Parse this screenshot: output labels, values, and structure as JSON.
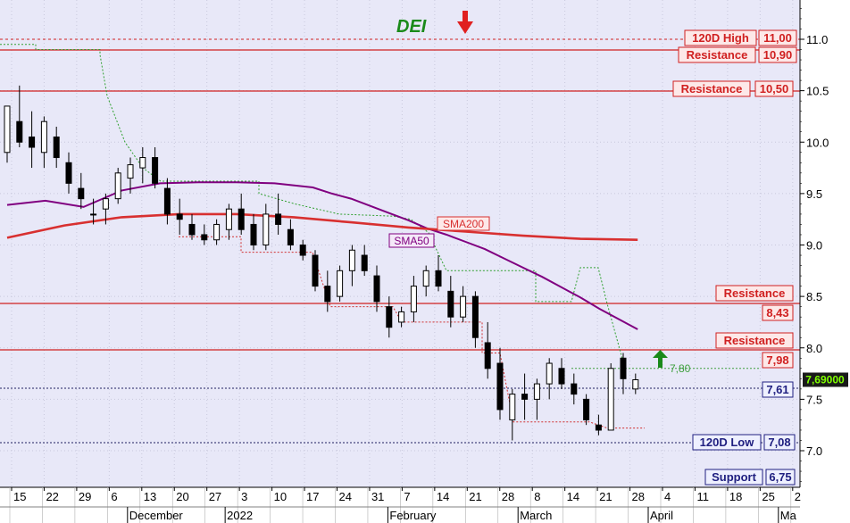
{
  "chart_data": {
    "type": "candlestick",
    "title": "DEI",
    "signal": "down",
    "ylim": [
      6.6,
      11.4
    ],
    "yticks": [
      "11.0",
      "10.5",
      "10.0",
      "9.5",
      "9.0",
      "8.5",
      "8.0",
      "7.5",
      "7.0"
    ],
    "ytick_values": [
      11.0,
      10.5,
      10.0,
      9.5,
      9.0,
      8.5,
      8.0,
      7.5,
      7.0
    ],
    "x_day_ticks": [
      "15",
      "22",
      "29",
      "6",
      "13",
      "20",
      "27",
      "3",
      "10",
      "17",
      "24",
      "31",
      "7",
      "14",
      "21",
      "28",
      "8",
      "14",
      "21",
      "28",
      "4",
      "11",
      "18",
      "25",
      "2"
    ],
    "x_month_labels": [
      {
        "label": "December",
        "at": 4
      },
      {
        "label": "2022",
        "at": 7
      },
      {
        "label": "February",
        "at": 12
      },
      {
        "label": "March",
        "at": 16
      },
      {
        "label": "April",
        "at": 20
      },
      {
        "label": "Ma",
        "at": 24
      }
    ],
    "levels": [
      {
        "label": "120D High",
        "value_text": "11,00",
        "value": 11.0,
        "style": "dashed"
      },
      {
        "label": "Resistance",
        "value_text": "10,90",
        "value": 10.9,
        "style": "solid"
      },
      {
        "label": "Resistance",
        "value_text": "10,50",
        "value": 10.5,
        "style": "solid"
      },
      {
        "label": "Resistance",
        "value_text": "8,43",
        "value": 8.43,
        "style": "solid"
      },
      {
        "label": "Resistance",
        "value_text": "7,98",
        "value": 7.98,
        "style": "solid"
      },
      {
        "label": "",
        "value_text": "7,61",
        "value": 7.61,
        "style": "dotted"
      },
      {
        "label": "120D Low",
        "value_text": "7,08",
        "value": 7.08,
        "style": "dotted"
      },
      {
        "label": "Support",
        "value_text": "6,75",
        "value": 6.75,
        "style": "none"
      }
    ],
    "last_price": "7,69000",
    "last_value": 7.69,
    "target_label": "7,80",
    "target_value": 7.8,
    "series": [
      {
        "name": "SMA50",
        "color": "#800080",
        "points": [
          [
            0,
            9.39
          ],
          [
            2,
            9.43
          ],
          [
            4,
            9.37
          ],
          [
            6,
            9.53
          ],
          [
            8,
            9.6
          ],
          [
            10,
            9.61
          ],
          [
            12,
            9.61
          ],
          [
            14,
            9.6
          ],
          [
            16,
            9.56
          ],
          [
            17,
            9.5
          ],
          [
            18,
            9.45
          ],
          [
            19,
            9.38
          ],
          [
            20,
            9.31
          ],
          [
            21,
            9.24
          ],
          [
            22,
            9.16
          ],
          [
            23,
            9.1
          ],
          [
            24,
            9.03
          ],
          [
            25,
            8.96
          ],
          [
            26,
            8.87
          ],
          [
            27,
            8.78
          ],
          [
            28,
            8.69
          ],
          [
            29,
            8.59
          ],
          [
            30,
            8.49
          ],
          [
            31,
            8.38
          ],
          [
            32,
            8.28
          ],
          [
            33,
            8.18
          ]
        ]
      },
      {
        "name": "SMA200",
        "color": "#d83030",
        "points": [
          [
            0,
            9.07
          ],
          [
            3,
            9.19
          ],
          [
            6,
            9.27
          ],
          [
            9,
            9.3
          ],
          [
            12,
            9.3
          ],
          [
            15,
            9.27
          ],
          [
            18,
            9.22
          ],
          [
            21,
            9.17
          ],
          [
            24,
            9.13
          ],
          [
            27,
            9.09
          ],
          [
            30,
            9.06
          ],
          [
            33,
            9.05
          ]
        ]
      }
    ],
    "candles": [
      [
        9.9,
        10.35,
        9.8,
        10.35
      ],
      [
        10.2,
        10.55,
        9.95,
        10.0
      ],
      [
        10.05,
        10.3,
        9.75,
        9.95
      ],
      [
        9.9,
        10.25,
        9.75,
        10.2
      ],
      [
        10.05,
        10.15,
        9.75,
        9.85
      ],
      [
        9.8,
        9.9,
        9.5,
        9.6
      ],
      [
        9.55,
        9.7,
        9.35,
        9.45
      ],
      [
        9.3,
        9.45,
        9.2,
        9.3
      ],
      [
        9.35,
        9.5,
        9.2,
        9.45
      ],
      [
        9.45,
        9.75,
        9.4,
        9.7
      ],
      [
        9.65,
        9.85,
        9.5,
        9.78
      ],
      [
        9.75,
        9.95,
        9.6,
        9.85
      ],
      [
        9.85,
        9.95,
        9.55,
        9.6
      ],
      [
        9.55,
        9.65,
        9.2,
        9.3
      ],
      [
        9.3,
        9.45,
        9.1,
        9.25
      ],
      [
        9.2,
        9.3,
        9.05,
        9.1
      ],
      [
        9.1,
        9.2,
        9.0,
        9.05
      ],
      [
        9.05,
        9.25,
        9.0,
        9.2
      ],
      [
        9.15,
        9.4,
        9.05,
        9.35
      ],
      [
        9.35,
        9.5,
        9.1,
        9.15
      ],
      [
        9.2,
        9.3,
        8.95,
        9.0
      ],
      [
        9.0,
        9.4,
        8.95,
        9.3
      ],
      [
        9.3,
        9.5,
        9.1,
        9.2
      ],
      [
        9.15,
        9.25,
        8.95,
        9.0
      ],
      [
        9.0,
        9.05,
        8.85,
        8.9
      ],
      [
        8.9,
        8.95,
        8.55,
        8.6
      ],
      [
        8.6,
        8.75,
        8.35,
        8.45
      ],
      [
        8.5,
        8.8,
        8.45,
        8.75
      ],
      [
        8.75,
        9.0,
        8.6,
        8.95
      ],
      [
        8.9,
        9.0,
        8.7,
        8.75
      ],
      [
        8.7,
        8.8,
        8.35,
        8.45
      ],
      [
        8.4,
        8.5,
        8.1,
        8.2
      ],
      [
        8.25,
        8.4,
        8.2,
        8.35
      ],
      [
        8.35,
        8.7,
        8.25,
        8.6
      ],
      [
        8.6,
        8.8,
        8.5,
        8.75
      ],
      [
        8.75,
        8.9,
        8.55,
        8.6
      ],
      [
        8.55,
        8.7,
        8.2,
        8.3
      ],
      [
        8.3,
        8.6,
        8.25,
        8.5
      ],
      [
        8.5,
        8.55,
        8.0,
        8.1
      ],
      [
        8.05,
        8.25,
        7.7,
        7.8
      ],
      [
        7.85,
        8.0,
        7.3,
        7.4
      ],
      [
        7.3,
        7.6,
        7.1,
        7.55
      ],
      [
        7.55,
        7.75,
        7.3,
        7.5
      ],
      [
        7.5,
        7.7,
        7.3,
        7.65
      ],
      [
        7.65,
        7.9,
        7.5,
        7.85
      ],
      [
        7.8,
        7.9,
        7.6,
        7.65
      ],
      [
        7.65,
        7.75,
        7.45,
        7.55
      ],
      [
        7.5,
        7.55,
        7.25,
        7.3
      ],
      [
        7.25,
        7.35,
        7.15,
        7.2
      ],
      [
        7.2,
        7.85,
        7.2,
        7.8
      ],
      [
        7.9,
        7.95,
        7.55,
        7.7
      ],
      [
        7.6,
        7.75,
        7.55,
        7.69
      ]
    ]
  }
}
